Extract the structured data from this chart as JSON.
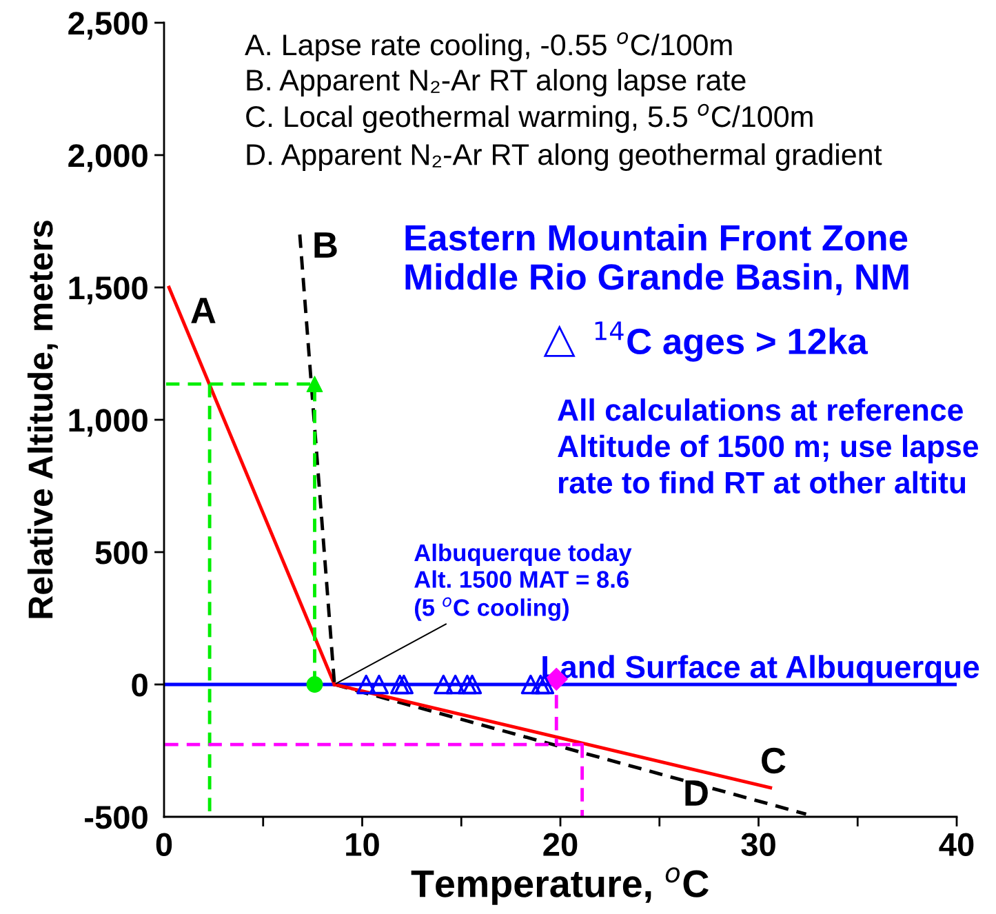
{
  "chart_data": {
    "type": "line",
    "xlabel": "Temperature, $^{o}$C",
    "ylabel": "Relative Altitude, meters",
    "xlim": [
      0,
      40
    ],
    "ylim": [
      -500,
      2500
    ],
    "xticks": [
      0,
      {
        "value": 5,
        "label": null
      },
      10,
      {
        "value": 15,
        "label": null
      },
      20,
      {
        "value": 25,
        "label": null
      },
      30,
      {
        "value": 35,
        "label": null
      },
      40
    ],
    "yticks": [
      {
        "value": -500,
        "label": "-500"
      },
      0,
      500,
      {
        "value": 1000,
        "label": "1,000"
      },
      {
        "value": 1500,
        "label": "1,500"
      },
      {
        "value": 2000,
        "label": "2,000"
      },
      {
        "value": 2500,
        "label": "2,500"
      }
    ],
    "grid": false,
    "legend": "right",
    "series": [
      {
        "color": "#0000ff",
        "x": [
          0,
          40
        ],
        "values": [
          0,
          0
        ],
        "line_style": "solid"
      },
      {
        "color": "#ff0000",
        "x": [
          0.25,
          8.6
        ],
        "values": [
          1500,
          0
        ],
        "line_style": "solid"
      },
      {
        "color": "#000000",
        "x": [
          6.85,
          8.6
        ],
        "values": [
          1700,
          0
        ],
        "line_style": "dashed"
      },
      {
        "color": "#000000",
        "x": [
          8.6,
          32.4
        ],
        "values": [
          0,
          -490
        ],
        "line_style": "dashed"
      },
      {
        "color": "#ff0000",
        "x": [
          8.6,
          30.6
        ],
        "values": [
          0,
          -390
        ],
        "line_style": "solid"
      },
      {
        "color": "#00ee00",
        "x": [
          7.6,
          7.6,
          0
        ],
        "values": [
          0,
          1135,
          1135
        ],
        "line_style": "dashed"
      },
      {
        "color": "#00ee00",
        "x": [
          2.3,
          2.3
        ],
        "values": [
          1135,
          -500
        ],
        "line_style": "dashed"
      },
      {
        "color": "#ff00ff",
        "x": [
          19.8,
          19.8,
          21.1,
          0
        ],
        "values": [
          -40,
          -227,
          -227,
          -227
        ],
        "line_style": "dashed"
      },
      {
        "color": "#ff00ff",
        "x": [
          21.1,
          21.1
        ],
        "values": [
          -227,
          -500
        ],
        "line_style": "dashed"
      },
      {
        "type": "scatter",
        "color": "#00ee00",
        "marker": "circle",
        "x": [
          7.6
        ],
        "values": [
          0
        ]
      },
      {
        "type": "scatter",
        "color": "#00ee00",
        "marker": "triangle",
        "x": [
          7.6
        ],
        "values": [
          1135
        ]
      },
      {
        "type": "scatter",
        "color": "#ff00ff",
        "marker": "diamond",
        "x": [
          19.8
        ],
        "values": [
          20
        ]
      },
      {
        "type": "scatter",
        "color": "#0000ff",
        "marker": "triangle",
        "name": "$^{14}$C ages > 12ka",
        "x": [
          10.2,
          10.85,
          11.9,
          12.1,
          14.1,
          14.7,
          15.3,
          15.55,
          18.5,
          19.0,
          19.2
        ],
        "values": [
          0,
          0,
          0,
          0,
          0,
          0,
          0,
          0,
          0,
          0,
          0
        ]
      }
    ],
    "annotations": [
      "A. Lapse rate cooling, -0.55 $^{o}$C/100m",
      "B. Apparent N₂-Ar RT along lapse rate",
      "C. Local geothermal warming, 5.5 $^{o}$C/100m",
      "D. Apparent N₂-Ar RT along geothermal gradient",
      "Eastern Mountain Front Zone\nMiddle Rio Grande Basin, NM",
      "All calculations at reference\nAltitude of 1500 m; use lapse\nrate to find RT at other altitu",
      {
        "text": "Land Surface at Albuquerque",
        "x": 19.0,
        "y": 0
      },
      "A",
      "B",
      "C",
      "D",
      {
        "text": "Albuquerque today\nAlt. 1500 MAT = 8.6\n(5 $^{o}$C cooling)",
        "x": 8.6,
        "y": 0
      }
    ]
  }
}
